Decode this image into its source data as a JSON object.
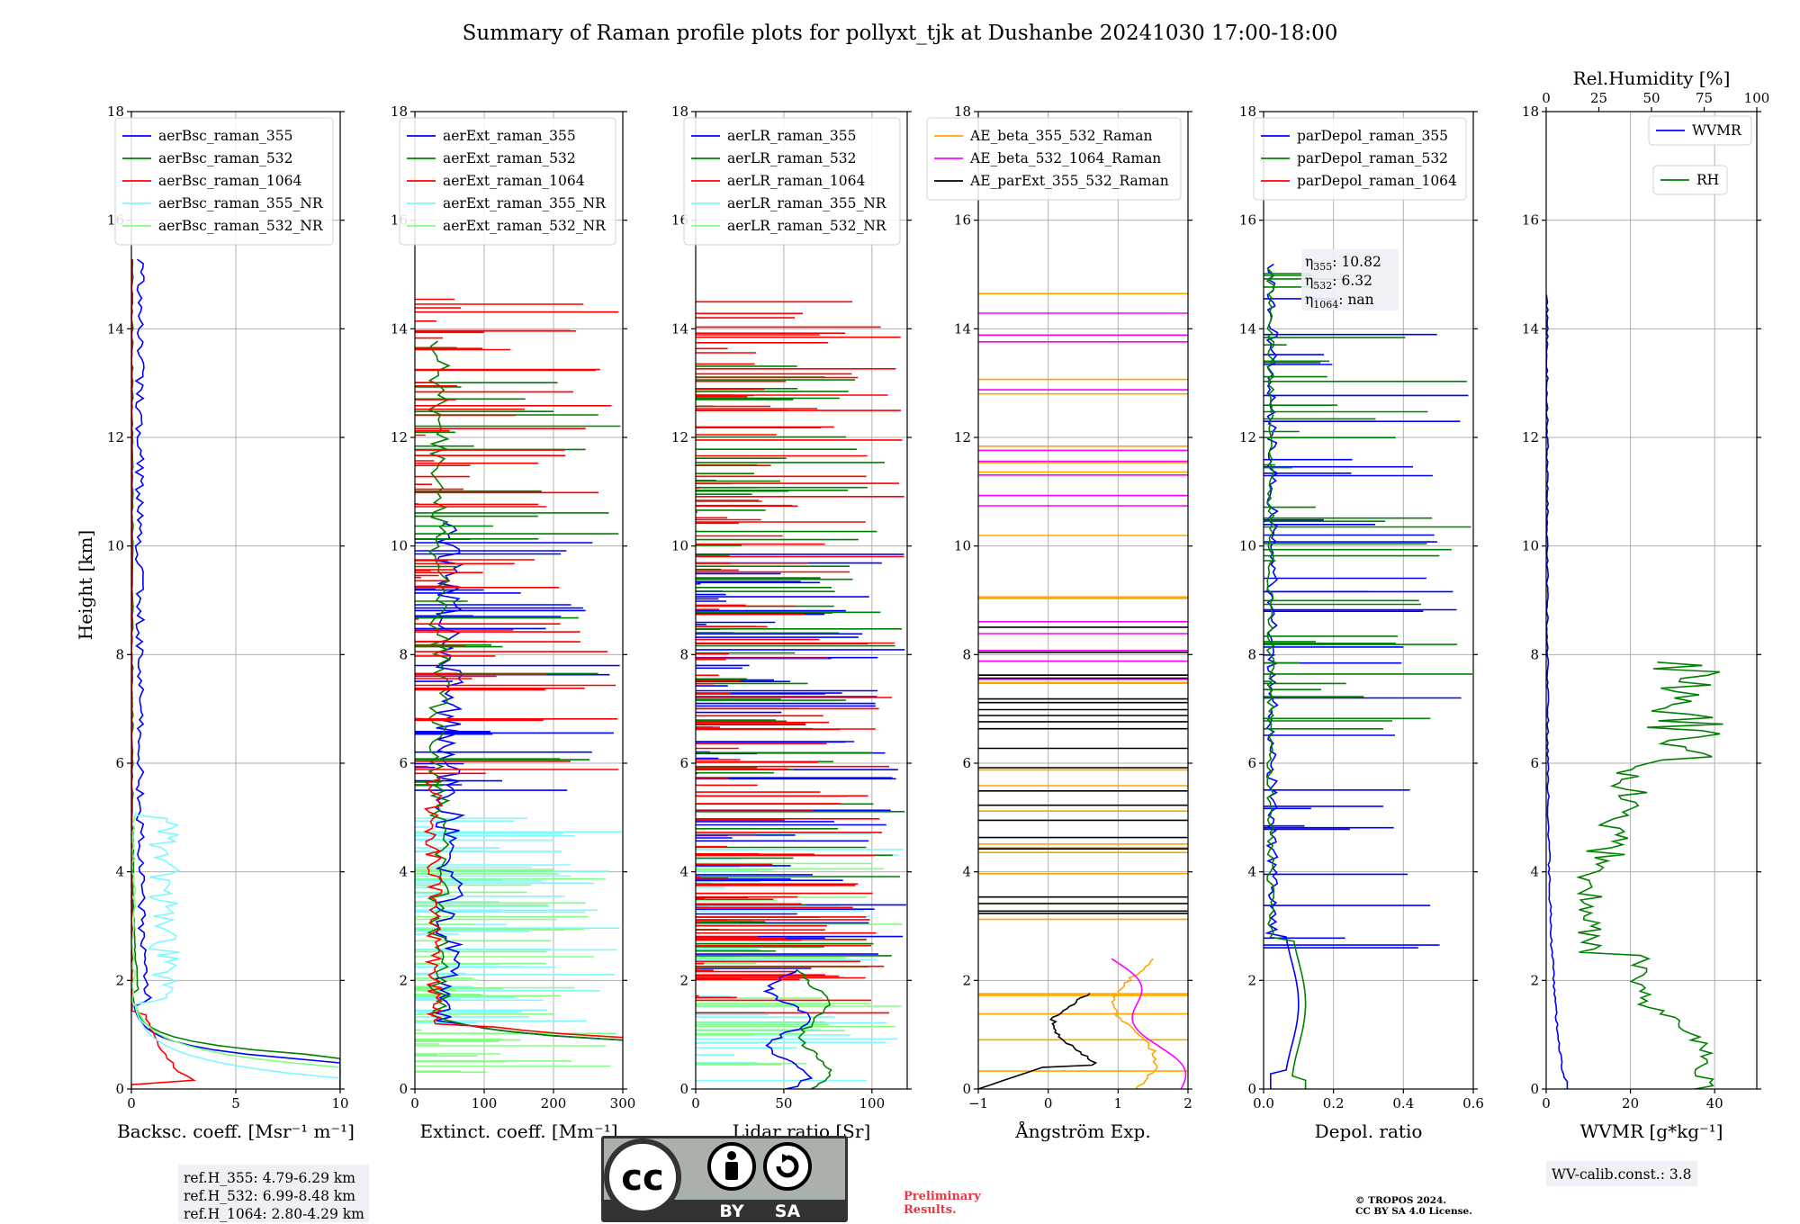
{
  "title": "Summary of Raman profile plots for pollyxt_tjk at Dushanbe 20241030 17:00-18:00",
  "y_label": "Height [km]",
  "colors": {
    "blue": "#0000ff",
    "green": "#008000",
    "red": "#ff0000",
    "cyan": "#7ff8ff",
    "lightgreen": "#80ff80",
    "orange": "#ffa500",
    "magenta": "#ff00ff",
    "black": "#000000",
    "grid": "#b0b0b0",
    "badge_gray": "#aab0aa",
    "badge_dark": "#333333"
  },
  "chart_data": [
    {
      "type": "line",
      "id": "bsc",
      "xlabel": "Backsc. coeff. [Msr⁻¹ m⁻¹]",
      "xlim": [
        0,
        10
      ],
      "xticks": [
        "0",
        "5",
        "10"
      ],
      "ylim": [
        0,
        18
      ],
      "yticks": [
        "0",
        "2",
        "4",
        "6",
        "8",
        "10",
        "12",
        "14",
        "16",
        "18"
      ],
      "legend_position": "upper-right",
      "series": [
        {
          "name": "aerBsc_raman_355",
          "color": "blue"
        },
        {
          "name": "aerBsc_raman_532",
          "color": "green"
        },
        {
          "name": "aerBsc_raman_1064",
          "color": "red"
        },
        {
          "name": "aerBsc_raman_355_NR",
          "color": "cyan"
        },
        {
          "name": "aerBsc_raman_532_NR",
          "color": "lightgreen"
        }
      ],
      "notes": [
        "ref.H_355: 4.79-6.29 km",
        "ref.H_532: 6.99-8.48 km",
        "ref.H_1064: 2.80-4.29 km"
      ]
    },
    {
      "type": "line",
      "id": "ext",
      "xlabel": "Extinct. coeff. [Mm⁻¹]",
      "xlim": [
        0,
        300
      ],
      "xticks": [
        "0",
        "100",
        "200",
        "300"
      ],
      "ylim": [
        0,
        18
      ],
      "yticks": [
        "0",
        "2",
        "4",
        "6",
        "8",
        "10",
        "12",
        "14",
        "16",
        "18"
      ],
      "legend_position": "upper-right",
      "series": [
        {
          "name": "aerExt_raman_355",
          "color": "blue"
        },
        {
          "name": "aerExt_raman_532",
          "color": "green"
        },
        {
          "name": "aerExt_raman_1064",
          "color": "red"
        },
        {
          "name": "aerExt_raman_355_NR",
          "color": "cyan"
        },
        {
          "name": "aerExt_raman_532_NR",
          "color": "lightgreen"
        }
      ]
    },
    {
      "type": "line",
      "id": "lr",
      "xlabel": "Lidar ratio [Sr]",
      "xlim": [
        0,
        120
      ],
      "xticks": [
        "0",
        "50",
        "100"
      ],
      "ylim": [
        0,
        18
      ],
      "yticks": [
        "0",
        "2",
        "4",
        "6",
        "8",
        "10",
        "12",
        "14",
        "16",
        "18"
      ],
      "legend_position": "upper-right",
      "series": [
        {
          "name": "aerLR_raman_355",
          "color": "blue"
        },
        {
          "name": "aerLR_raman_532",
          "color": "green"
        },
        {
          "name": "aerLR_raman_1064",
          "color": "red"
        },
        {
          "name": "aerLR_raman_355_NR",
          "color": "cyan"
        },
        {
          "name": "aerLR_raman_532_NR",
          "color": "lightgreen"
        }
      ]
    },
    {
      "type": "line",
      "id": "ae",
      "xlabel": "Ångström Exp.",
      "xlim": [
        -1,
        2
      ],
      "xticks": [
        "−1",
        "0",
        "1",
        "2"
      ],
      "ylim": [
        0,
        18
      ],
      "yticks": [
        "0",
        "2",
        "4",
        "6",
        "8",
        "10",
        "12",
        "14",
        "16",
        "18"
      ],
      "legend_position": "upper-right",
      "series": [
        {
          "name": "AE_beta_355_532_Raman",
          "color": "orange"
        },
        {
          "name": "AE_beta_532_1064_Raman",
          "color": "magenta"
        },
        {
          "name": "AE_parExt_355_532_Raman",
          "color": "black"
        }
      ]
    },
    {
      "type": "line",
      "id": "depol",
      "xlabel": "Depol. ratio",
      "xlim": [
        0,
        0.6
      ],
      "xticks": [
        "0.0",
        "0.2",
        "0.4",
        "0.6"
      ],
      "ylim": [
        0,
        18
      ],
      "yticks": [
        "0",
        "2",
        "4",
        "6",
        "8",
        "10",
        "12",
        "14",
        "16",
        "18"
      ],
      "legend_position": "upper-right",
      "series": [
        {
          "name": "parDepol_raman_355",
          "color": "blue"
        },
        {
          "name": "parDepol_raman_532",
          "color": "green"
        },
        {
          "name": "parDepol_raman_1064",
          "color": "red"
        }
      ],
      "annotations": [
        {
          "sym": "η",
          "sub": "355",
          "text": ": 10.82"
        },
        {
          "sym": "η",
          "sub": "532",
          "text": ": 6.32"
        },
        {
          "sym": "η",
          "sub": "1064",
          "text": ": nan"
        }
      ]
    },
    {
      "type": "line",
      "id": "wv",
      "xlabel": "WVMR [g*kg⁻¹]",
      "xlim": [
        0,
        50
      ],
      "xticks": [
        "0",
        "20",
        "40"
      ],
      "ylim": [
        0,
        18
      ],
      "yticks": [
        "0",
        "2",
        "4",
        "6",
        "8",
        "10",
        "12",
        "14",
        "16",
        "18"
      ],
      "x2label": "Rel.Humidity [%]",
      "x2lim": [
        0,
        100
      ],
      "x2ticks": [
        "0",
        "25",
        "50",
        "75",
        "100"
      ],
      "legend_position": "upper-right",
      "series": [
        {
          "name": "WVMR",
          "color": "blue"
        },
        {
          "name": "RH",
          "color": "green"
        }
      ],
      "notes": [
        "WV-calib.const.: 3.8"
      ]
    }
  ],
  "badge": {
    "by": "BY",
    "sa": "SA",
    "cc": "cc"
  },
  "footer": {
    "preliminary": [
      "Preliminary",
      "Results."
    ],
    "copyright": [
      "© TROPOS 2024.",
      "CC BY SA 4.0 License."
    ]
  }
}
